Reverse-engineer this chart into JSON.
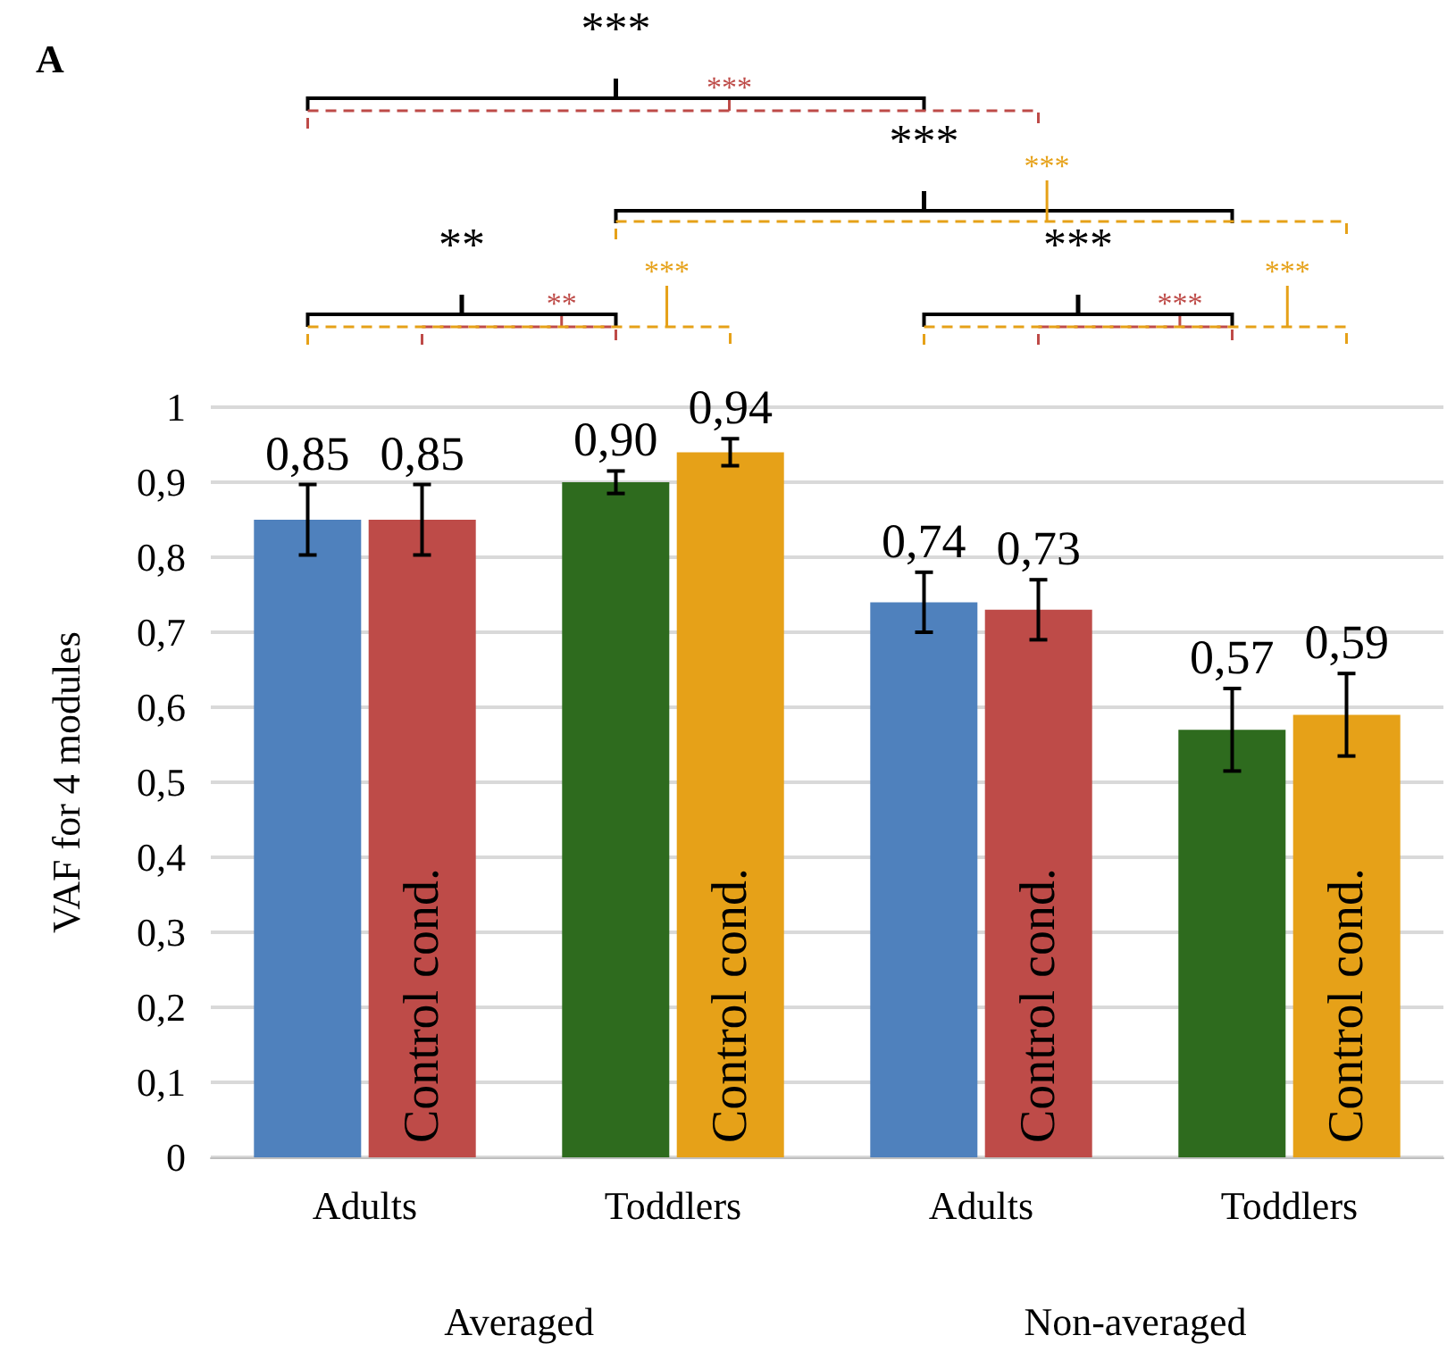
{
  "chart_data": {
    "type": "bar",
    "ylabel": "VAF for 4 modules",
    "categories": [
      "Adults",
      "Toddlers",
      "Adults",
      "Toddlers"
    ],
    "series": [
      {
        "colors": [
          "#4f81bd",
          "#2e6b1e",
          "#4f81bd",
          "#2e6b1e"
        ],
        "values": [
          0.85,
          0.9,
          0.74,
          0.57
        ],
        "errors": [
          0.047,
          0.015,
          0.04,
          0.055
        ],
        "value_labels": [
          "0,85",
          "0,90",
          "0,74",
          "0,57"
        ]
      },
      {
        "name": "Control cond.",
        "colors": [
          "#be4b48",
          "#e6a118",
          "#be4b48",
          "#e6a118"
        ],
        "values": [
          0.85,
          0.94,
          0.73,
          0.59
        ],
        "errors": [
          0.047,
          0.018,
          0.04,
          0.055
        ],
        "value_labels": [
          "0,85",
          "0,94",
          "0,73",
          "0,59"
        ]
      }
    ],
    "ylim": [
      0,
      1
    ],
    "yticks": [
      0,
      {
        "value": 0.1,
        "label": "0,1"
      },
      {
        "value": 0.2,
        "label": "0,2"
      },
      {
        "value": 0.3,
        "label": "0,3"
      },
      {
        "value": 0.4,
        "label": "0,4"
      },
      {
        "value": 0.5,
        "label": "0,5"
      },
      {
        "value": 0.6,
        "label": "0,6"
      },
      {
        "value": 0.7,
        "label": "0,7"
      },
      {
        "value": 0.8,
        "label": "0,8"
      },
      {
        "value": 0.9,
        "label": "0,9"
      },
      1
    ],
    "grid": "y",
    "legend": false,
    "annotations": [
      "A",
      "***",
      "***",
      "***",
      "***",
      "**",
      "**",
      "***",
      "***",
      "***",
      "***",
      "Averaged",
      "Non-averaged"
    ]
  }
}
